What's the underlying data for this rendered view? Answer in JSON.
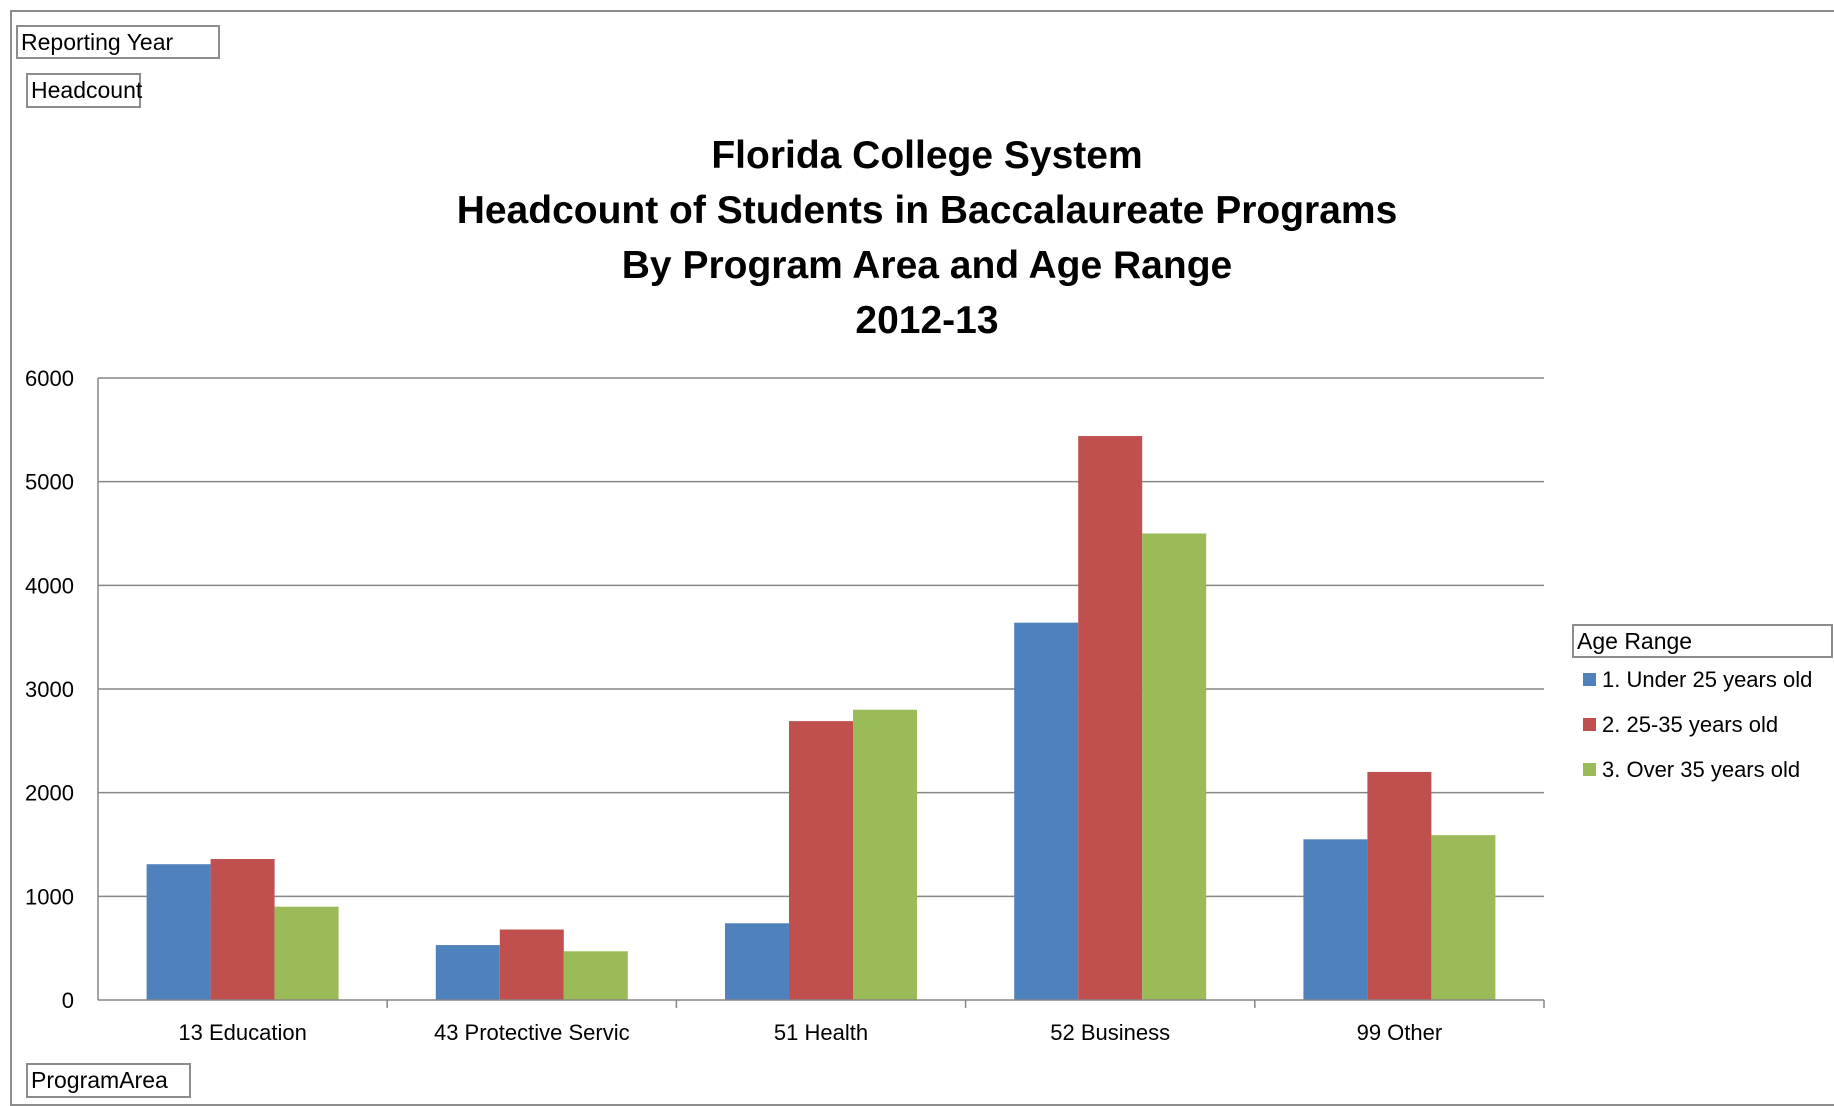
{
  "field_buttons": {
    "filter": "Reporting Year",
    "data": "Headcount",
    "axis": "ProgramArea",
    "legend": "Age Range"
  },
  "chart_data": {
    "type": "bar",
    "title_lines": [
      "Florida College System",
      "Headcount of Students in Baccalaureate Programs",
      "By Program Area and Age Range",
      "2012-13"
    ],
    "categories": [
      "13 Education",
      "43 Protective Servic",
      "51 Health",
      "52 Business",
      "99 Other"
    ],
    "series": [
      {
        "name": "1. Under 25 years old",
        "color": "#4f81bd",
        "values": [
          1310,
          530,
          740,
          3640,
          1550
        ]
      },
      {
        "name": "2. 25-35 years old",
        "color": "#c0504d",
        "values": [
          1360,
          680,
          2690,
          5440,
          2200
        ]
      },
      {
        "name": "3. Over 35 years old",
        "color": "#9bbb59",
        "values": [
          900,
          470,
          2800,
          4500,
          1590
        ]
      }
    ],
    "ylim": [
      0,
      6000
    ],
    "yticks": [
      "0",
      "1000",
      "2000",
      "3000",
      "4000",
      "5000",
      "6000"
    ],
    "grid": true,
    "legend_position": "right"
  }
}
